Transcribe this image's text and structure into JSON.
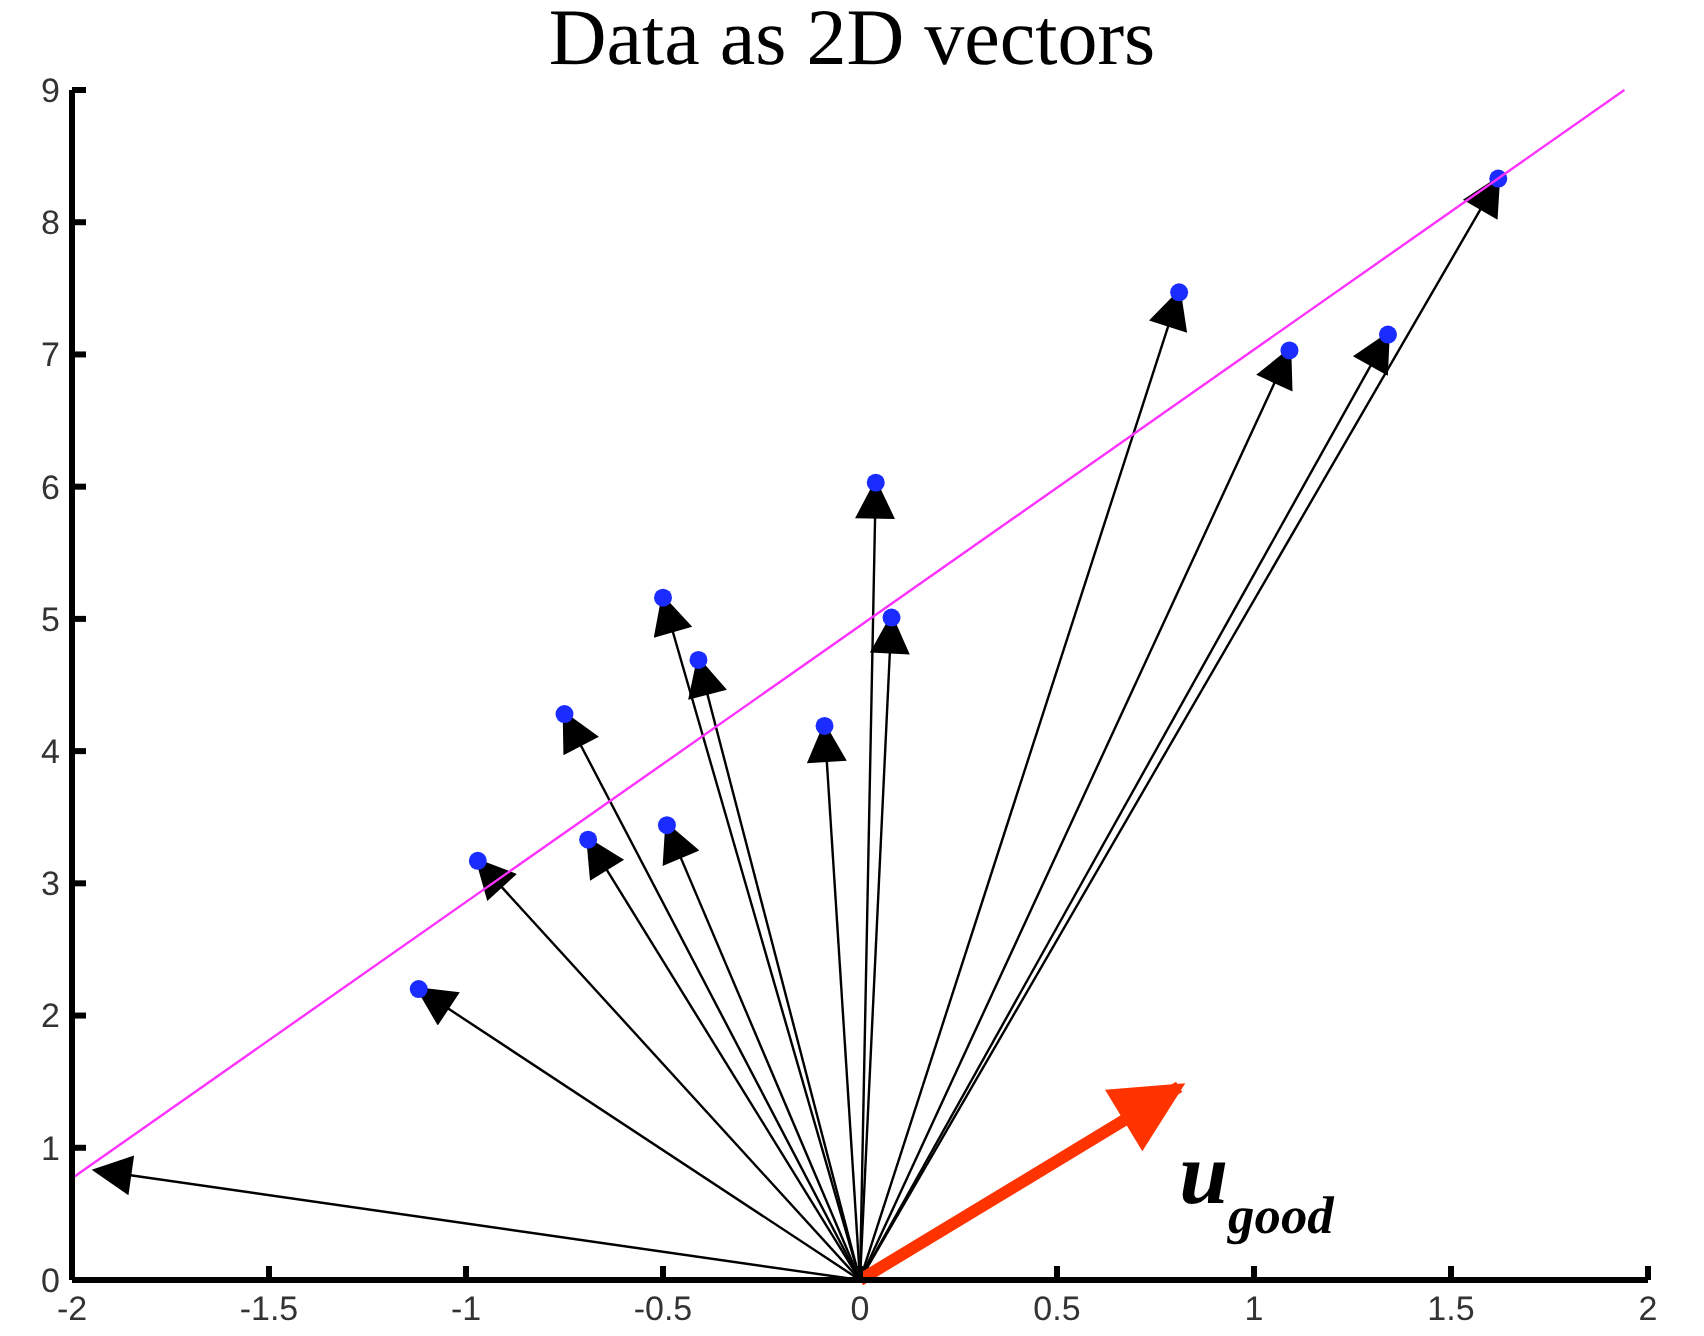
{
  "chart_data": {
    "type": "scatter",
    "title": "Data as 2D vectors",
    "xlim": [
      -2,
      2
    ],
    "ylim": [
      0,
      9
    ],
    "xticks": [
      -2,
      -1.5,
      -1,
      -0.5,
      0,
      0.5,
      1,
      1.5,
      2
    ],
    "yticks": [
      0,
      1,
      2,
      3,
      4,
      5,
      6,
      7,
      8,
      9
    ],
    "grid": false,
    "legend": false,
    "series": [
      {
        "type": "line",
        "color": "#000000",
        "marker": "none",
        "x": [
          0,
          -1.94
        ],
        "values": [
          0,
          0.83
        ]
      },
      {
        "type": "line",
        "color": "#000000",
        "marker": "none",
        "x": [
          0,
          -1.12
        ],
        "values": [
          0,
          2.2
        ]
      },
      {
        "type": "line",
        "color": "#000000",
        "marker": "none",
        "x": [
          0,
          -0.97
        ],
        "values": [
          0,
          3.17
        ]
      },
      {
        "type": "line",
        "color": "#000000",
        "marker": "none",
        "x": [
          0,
          -0.75
        ],
        "values": [
          0,
          4.28
        ]
      },
      {
        "type": "line",
        "color": "#000000",
        "marker": "none",
        "x": [
          0,
          -0.69
        ],
        "values": [
          0,
          3.33
        ]
      },
      {
        "type": "line",
        "color": "#000000",
        "marker": "none",
        "x": [
          0,
          -0.5
        ],
        "values": [
          0,
          5.16
        ]
      },
      {
        "type": "line",
        "color": "#000000",
        "marker": "none",
        "x": [
          0,
          -0.49
        ],
        "values": [
          0,
          3.44
        ]
      },
      {
        "type": "line",
        "color": "#000000",
        "marker": "none",
        "x": [
          0,
          -0.41
        ],
        "values": [
          0,
          4.69
        ]
      },
      {
        "type": "line",
        "color": "#000000",
        "marker": "none",
        "x": [
          0,
          -0.09
        ],
        "values": [
          0,
          4.19
        ]
      },
      {
        "type": "line",
        "color": "#000000",
        "marker": "none",
        "x": [
          0,
          0.04
        ],
        "values": [
          0,
          6.03
        ]
      },
      {
        "type": "line",
        "color": "#000000",
        "marker": "none",
        "x": [
          0,
          0.08
        ],
        "values": [
          0,
          5.01
        ]
      },
      {
        "type": "line",
        "color": "#000000",
        "marker": "none",
        "x": [
          0,
          0.81
        ],
        "values": [
          0,
          7.47
        ]
      },
      {
        "type": "line",
        "color": "#000000",
        "marker": "none",
        "x": [
          0,
          1.09
        ],
        "values": [
          0,
          7.03
        ]
      },
      {
        "type": "line",
        "color": "#000000",
        "marker": "none",
        "x": [
          0,
          1.34
        ],
        "values": [
          0,
          7.15
        ]
      },
      {
        "type": "line",
        "color": "#000000",
        "marker": "none",
        "x": [
          0,
          1.62
        ],
        "values": [
          0,
          8.33
        ]
      },
      {
        "color": "#1a2cff",
        "marker": "circle",
        "x": [
          -1.12,
          -0.97,
          -0.75,
          -0.69,
          -0.5,
          -0.49,
          -0.41,
          -0.09,
          0.04,
          0.08,
          0.81,
          1.09,
          1.34,
          1.62
        ],
        "values": [
          2.2,
          3.17,
          4.28,
          3.33,
          5.16,
          3.44,
          4.69,
          4.19,
          6.03,
          5.01,
          7.47,
          7.03,
          7.15,
          8.33
        ]
      },
      {
        "type": "line",
        "color": "#ff33ff",
        "marker": "none",
        "line_style": "solid",
        "x": [
          -2,
          1.94
        ],
        "values": [
          0.77,
          9
        ]
      },
      {
        "type": "line",
        "name": "u$_{good}$",
        "color": "#ff3300",
        "marker": "none",
        "x": [
          0,
          0.81
        ],
        "values": [
          0,
          1.46
        ]
      }
    ]
  }
}
